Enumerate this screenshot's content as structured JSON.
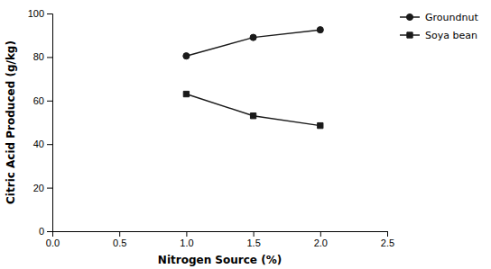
{
  "chart_data": {
    "type": "line",
    "x_label": "Nitrogen Source (%)",
    "y_label": "Citric Acid Produced (g/kg)",
    "x": [
      1.0,
      1.5,
      2.0
    ],
    "series": [
      {
        "name": "Groundnut",
        "color": "#1a1a1a",
        "marker": "circle",
        "values": [
          80.5,
          89.0,
          92.5
        ]
      },
      {
        "name": "Soya bean",
        "color": "#1a1a1a",
        "marker": "square",
        "values": [
          63.0,
          53.0,
          48.5
        ]
      }
    ],
    "xlim": [
      0.0,
      2.5
    ],
    "ylim": [
      0,
      100
    ],
    "xticks": [
      {
        "value": 0.0,
        "label": "0.0"
      },
      0.5,
      {
        "value": 1.0,
        "label": "1.0"
      },
      1.5,
      {
        "value": 2.0,
        "label": "2.0"
      },
      2.5
    ],
    "yticks": [
      0,
      20,
      40,
      60,
      80,
      100
    ],
    "grid": false,
    "legend": "right"
  }
}
